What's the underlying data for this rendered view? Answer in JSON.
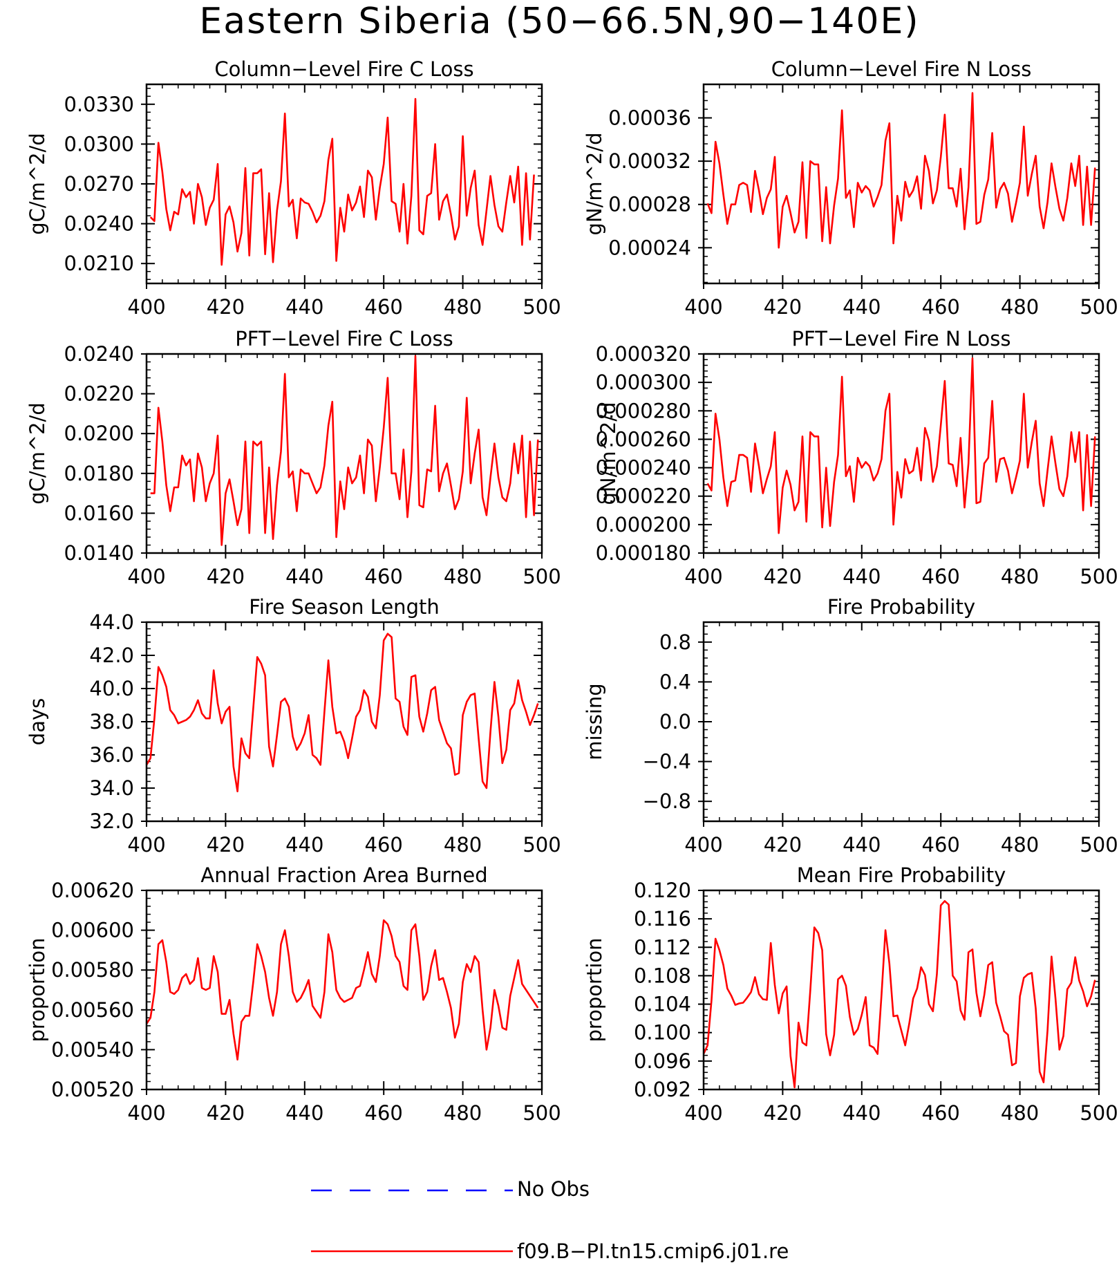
{
  "title": "Eastern Siberia (50−66.5N,90−140E)",
  "colors": {
    "model_line": "#ff0000",
    "obs_line": "#0000ff",
    "axes": "#000000",
    "background": "#ffffff"
  },
  "legend": [
    {
      "label": "No Obs",
      "style": "dashed",
      "color": "#0000ff"
    },
    {
      "label": "f09.B−PI.tn15.cmip6.j01.re",
      "style": "solid",
      "color": "#ff0000"
    }
  ],
  "chart_data": [
    {
      "type": "line",
      "title": "Column−Level Fire C Loss",
      "ylabel": "gC/m^2/d",
      "xlim": [
        400,
        500
      ],
      "ylim": [
        0.0195,
        0.0345
      ],
      "xticks": [
        400,
        420,
        440,
        460,
        480,
        500
      ],
      "yticks": [
        "0.0210",
        "0.0240",
        "0.0270",
        "0.0300",
        "0.0330"
      ],
      "x_start": 401,
      "x_step": 1,
      "series": [
        {
          "values": [
            0.0245,
            0.0242,
            0.0301,
            0.0279,
            0.0251,
            0.0235,
            0.0249,
            0.0247,
            0.0266,
            0.026,
            0.0264,
            0.024,
            0.027,
            0.026,
            0.0239,
            0.0252,
            0.0258,
            0.0285,
            0.0209,
            0.0247,
            0.0253,
            0.0241,
            0.0219,
            0.0233,
            0.0282,
            0.0216,
            0.0278,
            0.0278,
            0.0281,
            0.0217,
            0.0263,
            0.0211,
            0.025,
            0.0272,
            0.0323,
            0.0253,
            0.0258,
            0.0229,
            0.0259,
            0.0256,
            0.0255,
            0.0249,
            0.0241,
            0.0246,
            0.0257,
            0.0288,
            0.0304,
            0.0212,
            0.0252,
            0.0234,
            0.0262,
            0.025,
            0.0256,
            0.0268,
            0.0245,
            0.028,
            0.0275,
            0.0243,
            0.0267,
            0.0285,
            0.032,
            0.0257,
            0.0255,
            0.0234,
            0.027,
            0.0225,
            0.0261,
            0.0334,
            0.0235,
            0.0232,
            0.0261,
            0.0263,
            0.03,
            0.0243,
            0.0257,
            0.0262,
            0.0247,
            0.0228,
            0.0238,
            0.0306,
            0.0246,
            0.0267,
            0.028,
            0.0239,
            0.0224,
            0.025,
            0.0276,
            0.0254,
            0.0238,
            0.0234,
            0.0256,
            0.0276,
            0.0256,
            0.0283,
            0.0224,
            0.0278,
            0.0228,
            0.0277
          ]
        }
      ]
    },
    {
      "type": "line",
      "title": "Column−Level Fire N Loss",
      "ylabel": "gN/m^2/d",
      "xlim": [
        400,
        500
      ],
      "ylim": [
        0.000207,
        0.000391
      ],
      "xticks": [
        400,
        420,
        440,
        460,
        480,
        500
      ],
      "yticks": [
        "0.00024",
        "0.00028",
        "0.00032",
        "0.00036"
      ],
      "x_start": 401,
      "x_step": 1,
      "series": [
        {
          "values": [
            0.000281,
            0.000272,
            0.000338,
            0.000318,
            0.000289,
            0.000262,
            0.00028,
            0.00028,
            0.000298,
            0.0003,
            0.000298,
            0.000273,
            0.000311,
            0.000293,
            0.000271,
            0.000286,
            0.000294,
            0.000324,
            0.00024,
            0.000278,
            0.000288,
            0.000272,
            0.000254,
            0.000264,
            0.000319,
            0.000249,
            0.00032,
            0.000317,
            0.000317,
            0.000246,
            0.000296,
            0.000244,
            0.000279,
            0.000304,
            0.000367,
            0.000286,
            0.000293,
            0.000259,
            0.0003,
            0.000291,
            0.000297,
            0.000293,
            0.000278,
            0.000287,
            0.000298,
            0.000339,
            0.000355,
            0.000244,
            0.000288,
            0.000265,
            0.000301,
            0.000287,
            0.000293,
            0.000306,
            0.000276,
            0.000325,
            0.000311,
            0.000281,
            0.000293,
            0.000324,
            0.000363,
            0.000295,
            0.000295,
            0.000278,
            0.000313,
            0.000257,
            0.000296,
            0.000383,
            0.000262,
            0.000264,
            0.000289,
            0.000303,
            0.000346,
            0.000277,
            0.000294,
            0.0003,
            0.00029,
            0.000264,
            0.000281,
            0.0003,
            0.000352,
            0.000288,
            0.000308,
            0.000325,
            0.000278,
            0.000258,
            0.000282,
            0.000318,
            0.000296,
            0.000276,
            0.000265,
            0.000286,
            0.000318,
            0.000297,
            0.000325,
            0.000261,
            0.000315,
            0.000261,
            0.000314
          ]
        }
      ]
    },
    {
      "type": "line",
      "title": "PFT−Level Fire C Loss",
      "ylabel": "gC/m^2/d",
      "xlim": [
        400,
        500
      ],
      "ylim": [
        0.014,
        0.024
      ],
      "xticks": [
        400,
        420,
        440,
        460,
        480,
        500
      ],
      "yticks": [
        "0.0140",
        "0.0160",
        "0.0180",
        "0.0200",
        "0.0220",
        "0.0240"
      ],
      "x_start": 401,
      "x_step": 1,
      "series": [
        {
          "values": [
            0.017,
            0.017,
            0.0213,
            0.0196,
            0.0174,
            0.0161,
            0.0173,
            0.0173,
            0.0189,
            0.0184,
            0.0187,
            0.0166,
            0.019,
            0.0183,
            0.0166,
            0.0175,
            0.018,
            0.0199,
            0.0144,
            0.017,
            0.0177,
            0.0166,
            0.0154,
            0.0162,
            0.0196,
            0.015,
            0.0196,
            0.0194,
            0.0196,
            0.015,
            0.0183,
            0.0147,
            0.0174,
            0.0191,
            0.023,
            0.0178,
            0.0181,
            0.0161,
            0.0182,
            0.018,
            0.018,
            0.0175,
            0.017,
            0.0173,
            0.0184,
            0.0204,
            0.0216,
            0.0148,
            0.0176,
            0.0162,
            0.0183,
            0.0175,
            0.0178,
            0.0189,
            0.017,
            0.0197,
            0.0194,
            0.0166,
            0.0183,
            0.0203,
            0.0228,
            0.018,
            0.018,
            0.0167,
            0.0192,
            0.0158,
            0.0181,
            0.0239,
            0.0164,
            0.0163,
            0.0182,
            0.0181,
            0.0214,
            0.0171,
            0.018,
            0.0185,
            0.0174,
            0.0162,
            0.0167,
            0.0181,
            0.0218,
            0.0175,
            0.019,
            0.0202,
            0.0168,
            0.0159,
            0.0178,
            0.0195,
            0.0178,
            0.0168,
            0.0166,
            0.0175,
            0.0195,
            0.018,
            0.0199,
            0.0158,
            0.0196,
            0.0159,
            0.0197
          ]
        }
      ]
    },
    {
      "type": "line",
      "title": "PFT−Level Fire N Loss",
      "ylabel": "gN/m^2/d",
      "xlim": [
        400,
        500
      ],
      "ylim": [
        0.00018,
        0.00032
      ],
      "xticks": [
        400,
        420,
        440,
        460,
        480,
        500
      ],
      "yticks": [
        "0.000180",
        "0.000200",
        "0.000220",
        "0.000240",
        "0.000260",
        "0.000280",
        "0.000300",
        "0.000320"
      ],
      "x_start": 401,
      "x_step": 1,
      "series": [
        {
          "values": [
            0.000229,
            0.000224,
            0.000278,
            0.00026,
            0.000233,
            0.000213,
            0.00023,
            0.000231,
            0.000249,
            0.000249,
            0.000247,
            0.000223,
            0.000257,
            0.000241,
            0.000222,
            0.000232,
            0.000241,
            0.000265,
            0.000194,
            0.000226,
            0.000238,
            0.000228,
            0.00021,
            0.000216,
            0.000262,
            0.000202,
            0.000265,
            0.000262,
            0.000262,
            0.000198,
            0.00024,
            0.000199,
            0.00023,
            0.000249,
            0.000304,
            0.000234,
            0.000241,
            0.000216,
            0.000247,
            0.00024,
            0.000244,
            0.000241,
            0.000231,
            0.000236,
            0.000246,
            0.00028,
            0.000292,
            0.0002,
            0.000237,
            0.000219,
            0.000246,
            0.000236,
            0.000238,
            0.000254,
            0.000231,
            0.000268,
            0.000259,
            0.00023,
            0.000241,
            0.00027,
            0.000301,
            0.000243,
            0.000242,
            0.000227,
            0.000261,
            0.000212,
            0.000243,
            0.000317,
            0.000215,
            0.000216,
            0.000243,
            0.000247,
            0.000287,
            0.00023,
            0.000246,
            0.000247,
            0.000238,
            0.000222,
            0.000233,
            0.000245,
            0.000292,
            0.00024,
            0.000258,
            0.000273,
            0.000229,
            0.000213,
            0.000238,
            0.000262,
            0.000243,
            0.000225,
            0.00022,
            0.000234,
            0.000265,
            0.000244,
            0.000265,
            0.00021,
            0.000263,
            0.000213,
            0.000262
          ]
        }
      ]
    },
    {
      "type": "line",
      "title": "Fire Season Length",
      "ylabel": "days",
      "xlim": [
        400,
        500
      ],
      "ylim": [
        32.0,
        44.0
      ],
      "xticks": [
        400,
        420,
        440,
        460,
        480,
        500
      ],
      "yticks": [
        "32.0",
        "34.0",
        "36.0",
        "38.0",
        "40.0",
        "42.0",
        "44.0"
      ],
      "x_start": 400,
      "x_step": 1,
      "series": [
        {
          "values": [
            35.4,
            35.8,
            38.2,
            41.3,
            40.8,
            40.1,
            38.7,
            38.4,
            37.9,
            38.0,
            38.1,
            38.3,
            38.7,
            39.3,
            38.5,
            38.2,
            38.2,
            41.1,
            39.1,
            37.9,
            38.6,
            38.9,
            35.3,
            33.8,
            37.0,
            36.1,
            35.8,
            38.8,
            41.9,
            41.5,
            40.8,
            36.5,
            35.3,
            37.2,
            39.2,
            39.4,
            38.9,
            37.1,
            36.3,
            36.7,
            37.3,
            38.4,
            36.0,
            35.8,
            35.4,
            38.6,
            41.7,
            38.9,
            37.3,
            37.4,
            36.8,
            35.8,
            37.0,
            38.3,
            38.7,
            39.9,
            39.5,
            38.0,
            37.6,
            39.6,
            42.9,
            43.3,
            43.1,
            39.4,
            39.2,
            37.7,
            37.2,
            40.7,
            40.8,
            38.3,
            37.4,
            38.5,
            39.9,
            40.1,
            38.1,
            37.4,
            36.7,
            36.4,
            34.8,
            34.9,
            38.4,
            39.2,
            39.6,
            39.7,
            37.0,
            34.4,
            34.0,
            37.4,
            40.4,
            38.3,
            35.5,
            36.3,
            38.7,
            39.1,
            40.5,
            39.3,
            38.6,
            37.8,
            38.4,
            39.1
          ]
        }
      ]
    },
    {
      "type": "line",
      "title": "Fire Probability",
      "ylabel": "missing",
      "xlim": [
        400,
        500
      ],
      "ylim": [
        -1.0,
        1.0
      ],
      "xticks": [
        400,
        420,
        440,
        460,
        480,
        500
      ],
      "yticks": [
        "−0.8",
        "−0.4",
        "0.0",
        "0.4",
        "0.8"
      ],
      "x_start": 400,
      "x_step": 1,
      "series": []
    },
    {
      "type": "line",
      "title": "Annual Fraction Area Burned",
      "ylabel": "proportion",
      "xlim": [
        400,
        500
      ],
      "ylim": [
        0.0052,
        0.0062
      ],
      "xticks": [
        400,
        420,
        440,
        460,
        480,
        500
      ],
      "yticks": [
        "0.00520",
        "0.00540",
        "0.00560",
        "0.00580",
        "0.00600",
        "0.00620"
      ],
      "x_start": 400,
      "x_step": 1,
      "series": [
        {
          "values": [
            0.00553,
            0.00556,
            0.00569,
            0.00593,
            0.00595,
            0.00584,
            0.00569,
            0.00568,
            0.0057,
            0.00576,
            0.00578,
            0.00573,
            0.00575,
            0.00586,
            0.00571,
            0.0057,
            0.00571,
            0.00587,
            0.00579,
            0.00558,
            0.00558,
            0.00565,
            0.00548,
            0.00535,
            0.00554,
            0.00557,
            0.00557,
            0.00574,
            0.00593,
            0.00587,
            0.00579,
            0.00566,
            0.00557,
            0.00569,
            0.00593,
            0.006,
            0.00587,
            0.00569,
            0.00564,
            0.00566,
            0.0057,
            0.00575,
            0.00562,
            0.00559,
            0.00556,
            0.00569,
            0.00598,
            0.00589,
            0.0057,
            0.00566,
            0.00564,
            0.00565,
            0.00566,
            0.00571,
            0.00572,
            0.0058,
            0.00589,
            0.00578,
            0.00574,
            0.00587,
            0.00605,
            0.00603,
            0.00597,
            0.00587,
            0.00584,
            0.00572,
            0.0057,
            0.006,
            0.00603,
            0.00587,
            0.00565,
            0.00569,
            0.00582,
            0.0059,
            0.00575,
            0.00576,
            0.00569,
            0.00561,
            0.00546,
            0.00553,
            0.00574,
            0.00583,
            0.00579,
            0.00587,
            0.00584,
            0.0056,
            0.0054,
            0.00551,
            0.0057,
            0.00562,
            0.00551,
            0.0055,
            0.00567,
            0.00576,
            0.00585,
            0.00573,
            0.0057,
            0.00567,
            0.00564,
            0.00561
          ]
        }
      ]
    },
    {
      "type": "line",
      "title": "Mean Fire Probability",
      "ylabel": "proportion",
      "xlim": [
        400,
        500
      ],
      "ylim": [
        0.092,
        0.12
      ],
      "xticks": [
        400,
        420,
        440,
        460,
        480,
        500
      ],
      "yticks": [
        "0.092",
        "0.096",
        "0.100",
        "0.104",
        "0.108",
        "0.112",
        "0.116",
        "0.120"
      ],
      "x_start": 400,
      "x_step": 1,
      "series": [
        {
          "values": [
            0.097,
            0.0982,
            0.1045,
            0.1132,
            0.1116,
            0.1095,
            0.1062,
            0.1052,
            0.1039,
            0.1041,
            0.1042,
            0.1049,
            0.1057,
            0.1078,
            0.1054,
            0.1047,
            0.1046,
            0.1126,
            0.1067,
            0.1027,
            0.1055,
            0.1065,
            0.0967,
            0.0923,
            0.1014,
            0.0986,
            0.0982,
            0.106,
            0.1148,
            0.114,
            0.1116,
            0.0998,
            0.0968,
            0.0997,
            0.1075,
            0.108,
            0.1066,
            0.1022,
            0.0997,
            0.1005,
            0.1025,
            0.105,
            0.0982,
            0.0979,
            0.097,
            0.1053,
            0.1144,
            0.1097,
            0.1023,
            0.1024,
            0.1003,
            0.0982,
            0.1012,
            0.1048,
            0.1062,
            0.1092,
            0.1081,
            0.104,
            0.103,
            0.1082,
            0.1179,
            0.1185,
            0.118,
            0.108,
            0.1072,
            0.1031,
            0.1018,
            0.1113,
            0.1117,
            0.1056,
            0.1023,
            0.1053,
            0.1095,
            0.1099,
            0.1042,
            0.1023,
            0.1002,
            0.0997,
            0.0954,
            0.0957,
            0.1051,
            0.1077,
            0.1082,
            0.1084,
            0.1034,
            0.0945,
            0.093,
            0.1003,
            0.1107,
            0.1048,
            0.0976,
            0.0995,
            0.1061,
            0.107,
            0.1106,
            0.1073,
            0.1058,
            0.1037,
            0.1051,
            0.1074
          ]
        }
      ]
    }
  ]
}
